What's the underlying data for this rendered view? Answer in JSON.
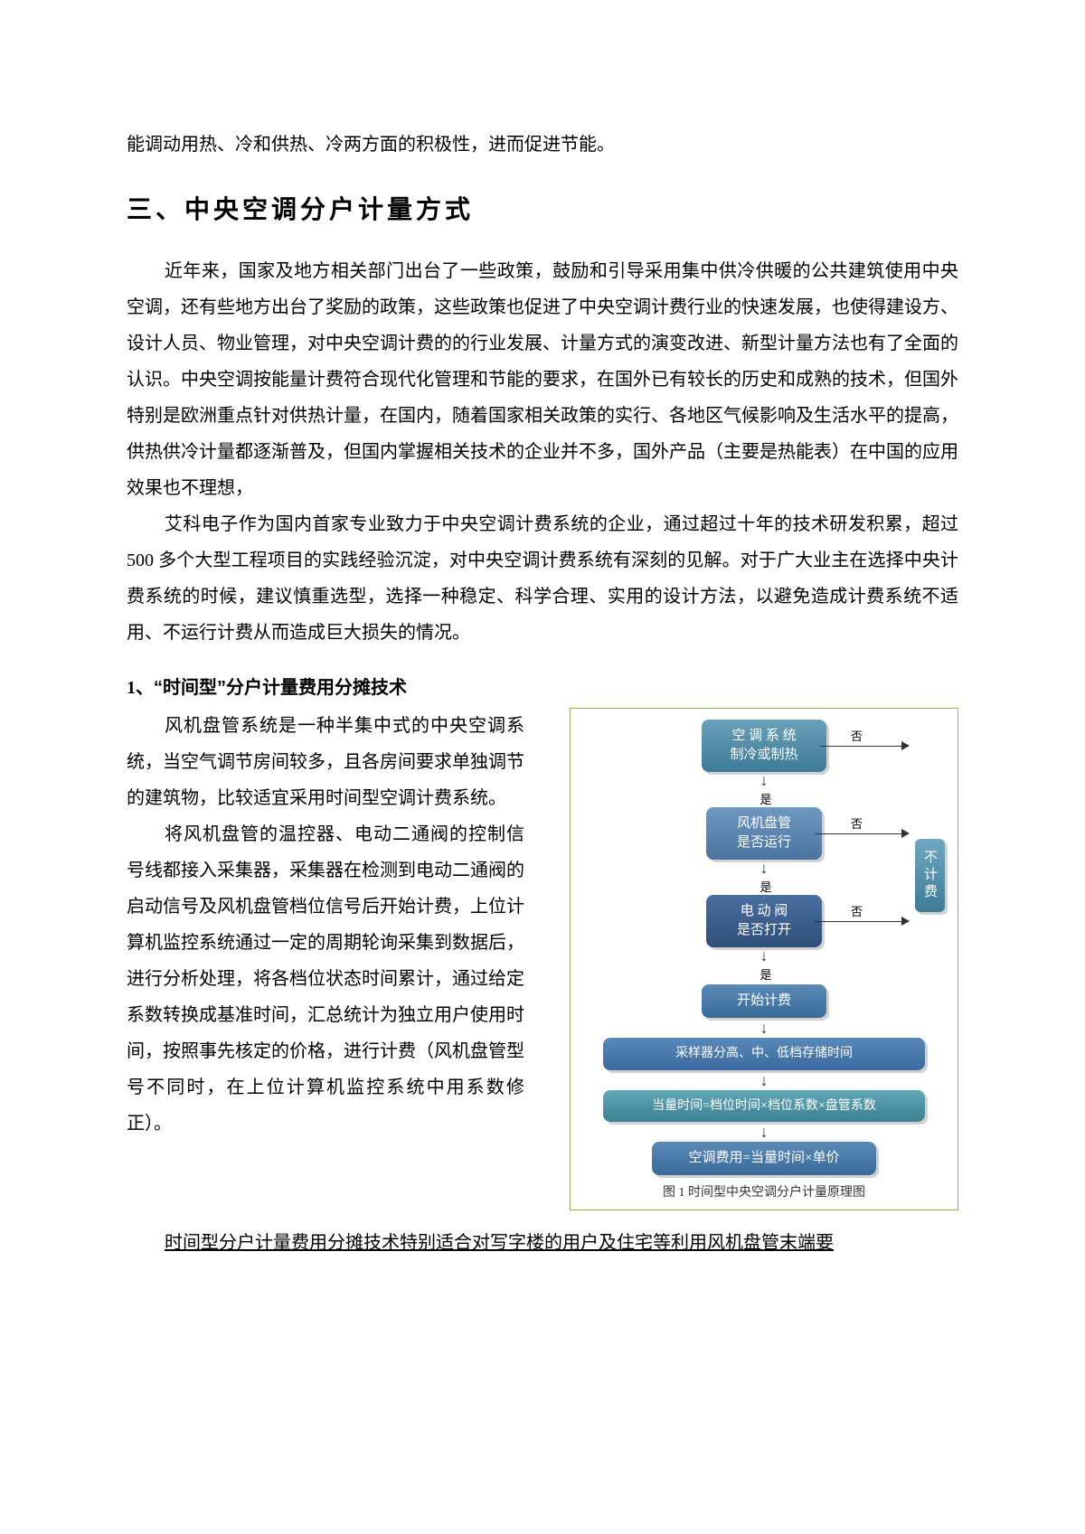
{
  "intro_line": "能调动用热、冷和供热、冷两方面的积极性，进而促进节能。",
  "heading": "三、中央空调分户计量方式",
  "para1": "近年来，国家及地方相关部门出台了一些政策，鼓励和引导采用集中供冷供暖的公共建筑使用中央空调，还有些地方出台了奖励的政策，这些政策也促进了中央空调计费行业的快速发展，也使得建设方、设计人员、物业管理，对中央空调计费的的行业发展、计量方式的演变改进、新型计量方法也有了全面的认识。中央空调按能量计费符合现代化管理和节能的要求，在国外已有较长的历史和成熟的技术，但国外特别是欧洲重点针对供热计量，在国内，随着国家相关政策的实行、各地区气候影响及生活水平的提高，供热供冷计量都逐渐普及，但国内掌握相关技术的企业并不多，国外产品（主要是热能表）在中国的应用效果也不理想，",
  "para2": "艾科电子作为国内首家专业致力于中央空调计费系统的企业，通过超过十年的技术研发积累，超过 500 多个大型工程项目的实践经验沉淀，对中央空调计费系统有深刻的见解。对于广大业主在选择中央计费系统的时候，建议慎重选型，选择一种稳定、科学合理、实用的设计方法，以避免造成计费系统不适用、不运行计费从而造成巨大损失的情况。",
  "subheading_num": "1、",
  "subheading_text": "“时间型”分户计量费用分摊技术",
  "left_para1": "风机盘管系统是一种半集中式的中央空调系统，当空气调节房间较多，且各房间要求单独调节的建筑物，比较适宜采用时间型空调计费系统。",
  "left_para2": "将风机盘管的温控器、电动二通阀的控制信号线都接入采集器，采集器在检测到电动二通阀的启动信号及风机盘管档位信号后开始计费，上位计算机监控系统通过一定的周期轮询采集到数据后，进行分析处理，将各档位状态时间累计，通过给定系数转换成基准时间，汇总统计为独立用户使用时间，按照事先核定的价格，进行计费（风机盘管型号不同时，在上位计算机监控系统中用系数修正）。",
  "underline_para": "时间型分户计量费用分摊技术特别适合对写字楼的用户及住宅等利用风机盘管末端要",
  "flowchart": {
    "node1": {
      "text_l1": "空 调 系 统",
      "text_l2": "制冷或制热",
      "c1": "#6aa1b8",
      "c2": "#3d7a96"
    },
    "yes": "是",
    "no": "否",
    "node2": {
      "text_l1": "风机盘管",
      "text_l2": "是否运行",
      "c1": "#6f98c0",
      "c2": "#4a74a0"
    },
    "node3": {
      "text_l1": "电 动 阀",
      "text_l2": "是否打开",
      "c1": "#4a6fa0",
      "c2": "#2e4e7a"
    },
    "node4": {
      "text": "开始计费",
      "c1": "#5a8ab8",
      "c2": "#3a6a98"
    },
    "node5": {
      "text": "采样器分高、中、低档存储时间",
      "c1": "#5a88b8",
      "c2": "#3a6aa0"
    },
    "node6": {
      "text": "当量时间=档位时间×档位系数×盘管系数",
      "c1": "#62a8b8",
      "c2": "#3a8090"
    },
    "node7": {
      "text": "空调费用=当量时间×单价",
      "c1": "#5a8ab8",
      "c2": "#3a6a98"
    },
    "nofee": {
      "text": "不计费",
      "c1": "#6fa8c0",
      "c2": "#3d7a96"
    },
    "caption": "图 1 时间型中央空调分户计量原理图"
  }
}
